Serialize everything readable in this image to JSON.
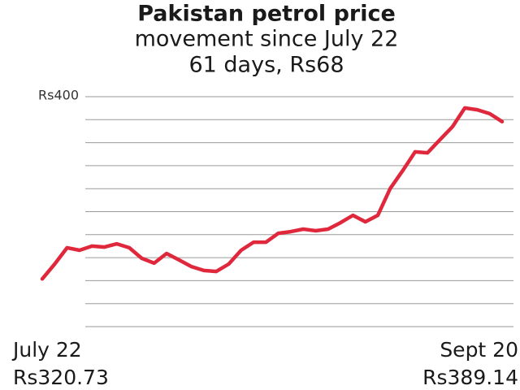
{
  "chart_data": {
    "type": "line",
    "title": "Pakistan petrol price",
    "subtitle": [
      "movement since July 22",
      "61 days, Rs68"
    ],
    "categories": [
      "July 22",
      null,
      null,
      null,
      null,
      null,
      null,
      null,
      null,
      null,
      null,
      null,
      null,
      null,
      null,
      null,
      null,
      null,
      null,
      null,
      null,
      null,
      null,
      null,
      null,
      null,
      null,
      null,
      null,
      null,
      null,
      null,
      null,
      null,
      null,
      null,
      null,
      "Sept 20"
    ],
    "series": [
      {
        "color": "#e0283c",
        "values": [
          320.73,
          327.2,
          334.3,
          333.2,
          335.0,
          334.6,
          336.0,
          334.3,
          329.7,
          327.6,
          331.8,
          329.0,
          326.1,
          324.4,
          324.0,
          327.2,
          333.2,
          336.7,
          336.7,
          340.6,
          341.3,
          342.4,
          341.7,
          342.4,
          345.2,
          348.4,
          345.6,
          348.4,
          360.1,
          367.8,
          376.0,
          375.6,
          381.3,
          386.9,
          395.1,
          394.3,
          392.6,
          389.14
        ],
        "value_labels": [
          "Rs320.73",
          null,
          null,
          null,
          null,
          null,
          null,
          null,
          null,
          null,
          null,
          null,
          null,
          null,
          null,
          null,
          null,
          null,
          null,
          null,
          null,
          null,
          null,
          null,
          null,
          null,
          null,
          null,
          null,
          null,
          null,
          null,
          null,
          null,
          null,
          null,
          null,
          "Rs389.14"
        ]
      }
    ],
    "ylim": [
      300,
      400
    ],
    "yticks": [
      {
        "value": 400,
        "label": "Rs400"
      }
    ],
    "ygrid": [
      390,
      380,
      370,
      360,
      350,
      340,
      330,
      320,
      310,
      300
    ],
    "grid": true
  }
}
